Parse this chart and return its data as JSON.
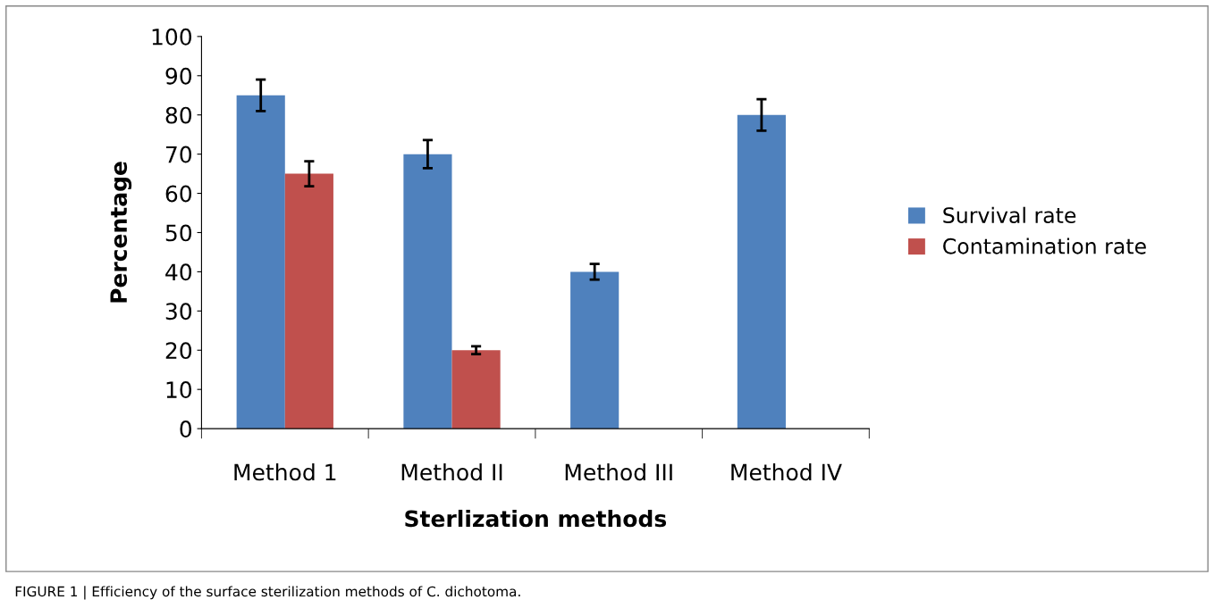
{
  "chart_data": {
    "type": "bar",
    "xlabel": "Sterlization methods",
    "ylabel": "Percentage",
    "categories": [
      "Method 1",
      "Method II",
      "Method III",
      "Method IV"
    ],
    "series": [
      {
        "name": "Survival rate",
        "color": "#4f81bd",
        "values": [
          85,
          70,
          40,
          80
        ],
        "errors": [
          4,
          3.6,
          2,
          4
        ]
      },
      {
        "name": "Contamination rate",
        "color": "#c0504d",
        "values": [
          65,
          20,
          null,
          null
        ],
        "errors": [
          3.2,
          1,
          null,
          null
        ]
      }
    ],
    "ylim": [
      0,
      100
    ],
    "yticks": [
      0,
      10,
      20,
      30,
      40,
      50,
      60,
      70,
      80,
      90,
      100
    ],
    "grid": false,
    "legend": "right",
    "annotations": [
      "FIGURE 1 | Efficiency of the surface sterilization methods of C. dichotoma."
    ]
  }
}
